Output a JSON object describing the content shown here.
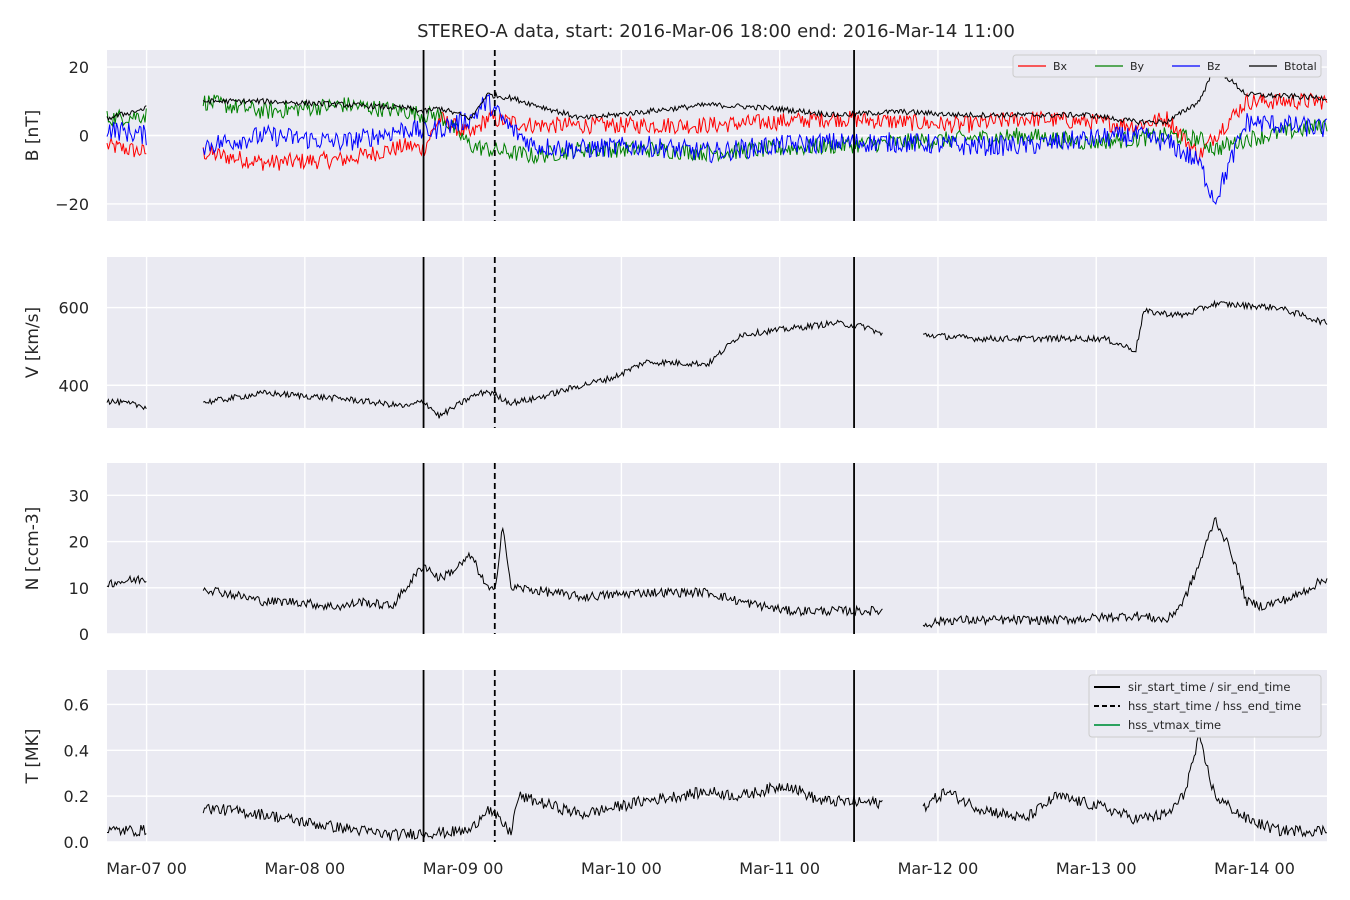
{
  "figure": {
    "title": "STEREO-A data, start: 2016-Mar-06 18:00  end: 2016-Mar-14 11:00",
    "x_tick_labels": [
      "Mar-07 00",
      "Mar-08 00",
      "Mar-09 00",
      "Mar-10 00",
      "Mar-11 00",
      "Mar-12 00",
      "Mar-13 00",
      "Mar-14 00"
    ],
    "colors": {
      "background": "#eaeaf2",
      "grid": "#ffffff",
      "Bx": "#ff0000",
      "By": "#008000",
      "Bz": "#0000ff",
      "Btotal": "#000000",
      "hss_vtmax": "#2ca25f"
    }
  },
  "chart_data": [
    {
      "type": "line",
      "panel": "B",
      "ylabel": "B [nT]",
      "ylim": [
        -25,
        25
      ],
      "y_ticks": [
        -20,
        0,
        20
      ],
      "x_unit": "days since 2016-03-06 18:00",
      "xlim": [
        0,
        7.708
      ],
      "legend": {
        "placement": "top-right",
        "entries": [
          "Bx",
          "By",
          "Bz",
          "Btotal"
        ]
      },
      "gaps": [
        [
          0.25,
          0.6
        ]
      ],
      "series": [
        {
          "name": "Bx",
          "color": "#ff0000",
          "x": [
            0.0,
            0.25,
            0.6,
            1.0,
            1.5,
            1.9,
            2.0,
            2.1,
            2.3,
            2.4,
            2.55,
            2.7,
            3.0,
            3.4,
            3.8,
            4.2,
            4.6,
            5.0,
            5.4,
            5.8,
            6.2,
            6.5,
            6.7,
            6.9,
            7.0,
            7.2,
            7.7
          ],
          "y": [
            -3,
            -5,
            -5,
            -8,
            -7,
            -3,
            -4,
            5,
            0,
            5,
            4,
            3,
            3,
            3,
            3,
            4,
            5,
            4,
            3,
            5,
            4,
            3,
            5,
            -6,
            0,
            10,
            10
          ]
        },
        {
          "name": "By",
          "color": "#008000",
          "x": [
            0.0,
            0.25,
            0.6,
            1.0,
            1.5,
            1.9,
            2.0,
            2.1,
            2.3,
            2.4,
            2.55,
            2.7,
            3.0,
            3.4,
            3.8,
            4.2,
            4.6,
            5.0,
            5.4,
            5.8,
            6.2,
            6.5,
            6.7,
            6.9,
            7.0,
            7.2,
            7.7
          ],
          "y": [
            5,
            6,
            10,
            7,
            9,
            7,
            6,
            6,
            -3,
            -4,
            -5,
            -6,
            -4,
            -4,
            -5,
            -4,
            -3,
            -2,
            -1,
            0,
            -2,
            -1,
            0,
            -1,
            -4,
            -1,
            3
          ]
        },
        {
          "name": "Bz",
          "color": "#0000ff",
          "x": [
            0.0,
            0.25,
            0.6,
            1.0,
            1.5,
            1.9,
            2.0,
            2.1,
            2.3,
            2.4,
            2.55,
            2.7,
            3.0,
            3.4,
            3.8,
            4.2,
            4.6,
            5.0,
            5.4,
            5.8,
            6.2,
            6.5,
            6.7,
            6.9,
            7.0,
            7.2,
            7.7
          ],
          "y": [
            2,
            0,
            -3,
            0,
            -2,
            2,
            1,
            2,
            5,
            10,
            2,
            -3,
            -4,
            -3,
            -5,
            -3,
            -2,
            -2,
            -3,
            -3,
            -1,
            0,
            -2,
            -8,
            -19,
            4,
            2
          ]
        },
        {
          "name": "Btotal",
          "color": "#000000",
          "x": [
            0.0,
            0.25,
            0.6,
            1.0,
            1.5,
            1.9,
            2.0,
            2.1,
            2.3,
            2.4,
            2.55,
            2.7,
            3.0,
            3.4,
            3.8,
            4.2,
            4.6,
            5.0,
            5.4,
            5.8,
            6.2,
            6.5,
            6.7,
            6.9,
            7.0,
            7.2,
            7.7
          ],
          "y": [
            5,
            8,
            10,
            10,
            9,
            8,
            7,
            8,
            5,
            12,
            11,
            9,
            5,
            7,
            9,
            8,
            6,
            7,
            6,
            6,
            6,
            4,
            4,
            10,
            20,
            12,
            11
          ]
        }
      ]
    },
    {
      "type": "line",
      "panel": "V",
      "ylabel": "V [km/s]",
      "ylim": [
        290,
        730
      ],
      "y_ticks": [
        400,
        600
      ],
      "x_unit": "days since 2016-03-06 18:00",
      "xlim": [
        0,
        7.708
      ],
      "gaps": [
        [
          0.25,
          0.6
        ],
        [
          4.9,
          5.15
        ]
      ],
      "series": [
        {
          "name": "V",
          "color": "#000000",
          "x": [
            0.0,
            0.25,
            0.6,
            1.0,
            1.5,
            1.9,
            2.0,
            2.1,
            2.3,
            2.4,
            2.55,
            2.7,
            3.0,
            3.2,
            3.4,
            3.8,
            4.0,
            4.2,
            4.6,
            4.8,
            4.9,
            5.15,
            5.5,
            6.0,
            6.3,
            6.5,
            6.55,
            6.8,
            7.0,
            7.4,
            7.7
          ],
          "y": [
            360,
            345,
            355,
            380,
            365,
            345,
            360,
            320,
            370,
            385,
            355,
            365,
            400,
            420,
            460,
            455,
            530,
            540,
            560,
            550,
            530,
            530,
            520,
            520,
            520,
            490,
            590,
            580,
            610,
            600,
            560
          ]
        }
      ]
    },
    {
      "type": "line",
      "panel": "N",
      "ylabel": "N [ccm-3]",
      "ylim": [
        0,
        37
      ],
      "y_ticks": [
        0,
        10,
        20,
        30
      ],
      "x_unit": "days since 2016-03-06 18:00",
      "xlim": [
        0,
        7.708
      ],
      "gaps": [
        [
          0.25,
          0.6
        ],
        [
          4.9,
          5.15
        ]
      ],
      "series": [
        {
          "name": "N",
          "color": "#000000",
          "x": [
            0.0,
            0.25,
            0.6,
            1.0,
            1.2,
            1.4,
            1.5,
            1.6,
            1.8,
            2.0,
            2.1,
            2.2,
            2.3,
            2.4,
            2.45,
            2.5,
            2.55,
            2.6,
            3.0,
            3.4,
            3.8,
            4.0,
            4.3,
            4.5,
            4.9,
            5.15,
            5.3,
            6.0,
            6.5,
            6.7,
            6.8,
            6.9,
            7.0,
            7.1,
            7.2,
            7.3,
            7.5,
            7.7
          ],
          "y": [
            11,
            12,
            10,
            7,
            7,
            6,
            6,
            7,
            6,
            15,
            12,
            14,
            17,
            10,
            9,
            24,
            10,
            10,
            8,
            9,
            9,
            7,
            5,
            5,
            5,
            2,
            3,
            3,
            4,
            3,
            7,
            15,
            25,
            18,
            7,
            6,
            8,
            12
          ]
        }
      ]
    },
    {
      "type": "line",
      "panel": "T",
      "ylabel": "T [MK]",
      "ylim": [
        0,
        0.75
      ],
      "y_ticks": [
        0.0,
        0.2,
        0.4,
        0.6
      ],
      "x_unit": "days since 2016-03-06 18:00",
      "xlim": [
        0,
        7.708
      ],
      "gaps": [
        [
          0.25,
          0.6
        ],
        [
          4.9,
          5.15
        ]
      ],
      "legend": {
        "placement": "top-right",
        "entries": [
          "sir_start_time / sir_end_time",
          "hss_start_time / hss_end_time",
          "hss_vtmax_time"
        ]
      },
      "series": [
        {
          "name": "T",
          "color": "#000000",
          "x": [
            0.0,
            0.25,
            0.6,
            1.0,
            1.3,
            1.5,
            1.8,
            2.0,
            2.1,
            2.3,
            2.4,
            2.5,
            2.55,
            2.6,
            3.0,
            3.4,
            3.8,
            4.0,
            4.3,
            4.5,
            4.9,
            5.15,
            5.3,
            5.5,
            5.8,
            6.0,
            6.3,
            6.5,
            6.7,
            6.8,
            6.9,
            7.0,
            7.2,
            7.4,
            7.7
          ],
          "y": [
            0.05,
            0.05,
            0.15,
            0.12,
            0.08,
            0.06,
            0.03,
            0.04,
            0.04,
            0.05,
            0.15,
            0.08,
            0.04,
            0.2,
            0.12,
            0.18,
            0.22,
            0.2,
            0.25,
            0.18,
            0.17,
            0.15,
            0.22,
            0.15,
            0.1,
            0.2,
            0.15,
            0.1,
            0.12,
            0.2,
            0.45,
            0.2,
            0.1,
            0.05,
            0.05
          ]
        }
      ]
    }
  ],
  "event_lines": [
    {
      "kind": "sir_start_time",
      "style": "solid",
      "x": 2.0
    },
    {
      "kind": "hss_start_time",
      "style": "dashed",
      "x": 2.45
    },
    {
      "kind": "sir_end_time",
      "style": "solid",
      "x": 4.72
    }
  ]
}
